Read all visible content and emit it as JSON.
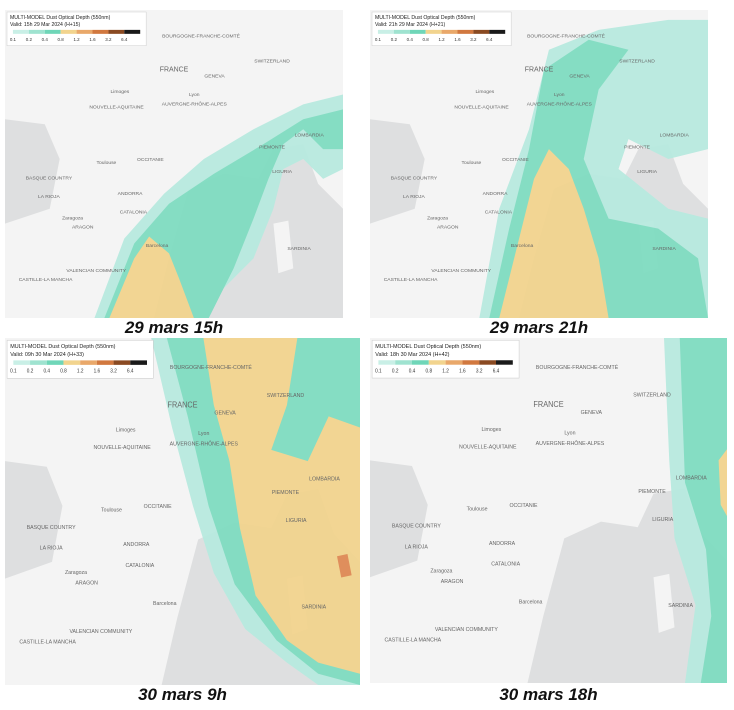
{
  "panels": [
    {
      "caption": "29 mars 15h",
      "legend_title": "MULTI-MODEL Dust Optical Depth (550nm)",
      "legend_valid": "Valid: 15h 29 Mar 2024 (H+15)"
    },
    {
      "caption": "29 mars 21h",
      "legend_title": "MULTI-MODEL Dust Optical Depth (550nm)",
      "legend_valid": "Valid: 21h 29 Mar 2024 (H+21)"
    },
    {
      "caption": "30 mars 9h",
      "legend_title": "MULTI-MODEL Dust Optical Depth (550nm)",
      "legend_valid": "Valid: 09h 30 Mar 2024 (H+33)"
    },
    {
      "caption": "30 mars 18h",
      "legend_title": "MULTI-MODEL Dust Optical Depth (550nm)",
      "legend_valid": "Valid: 18h 30 Mar 2024 (H+42)"
    }
  ],
  "legend_ticks": [
    "0.1",
    "0.2",
    "0.4",
    "0.8",
    "1.2",
    "1.6",
    "3.2",
    "6.4"
  ],
  "map_labels": [
    "FRANCE",
    "NOUVELLE-AQUITAINE",
    "AUVERGNE-RHÔNE-ALPES",
    "OCCITANIE",
    "BASQUE COUNTRY",
    "LA RIOJA",
    "ANDORRA",
    "CATALONIA",
    "ARAGON",
    "CASTILLE-LA MANCHA",
    "VALENCIAN COMMUNITY",
    "BOURGOGNE-FRANCHE-COMTÉ",
    "GENEVA",
    "SWITZERLAND",
    "LOMBARDIA",
    "PIEMONTE",
    "LIGURIA",
    "SARDINIA",
    "Toulouse",
    "Zaragoza",
    "Barcelona",
    "Limoges",
    "Lyon"
  ]
}
